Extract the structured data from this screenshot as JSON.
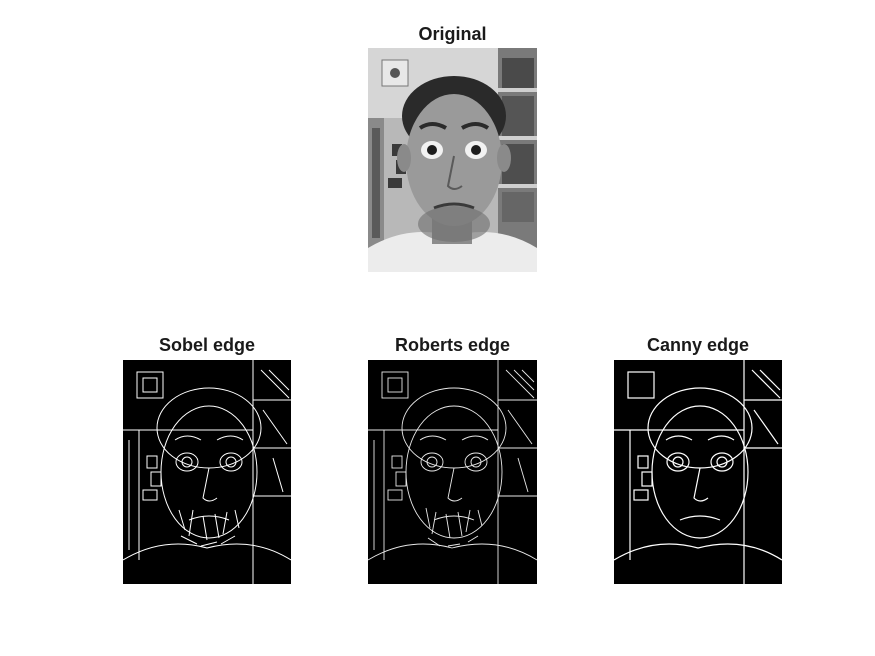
{
  "figure": {
    "panels": [
      {
        "id": "original",
        "title": "Original"
      },
      {
        "id": "sobel",
        "title": "Sobel edge"
      },
      {
        "id": "roberts",
        "title": "Roberts edge"
      },
      {
        "id": "canny",
        "title": "Canny edge"
      }
    ]
  }
}
